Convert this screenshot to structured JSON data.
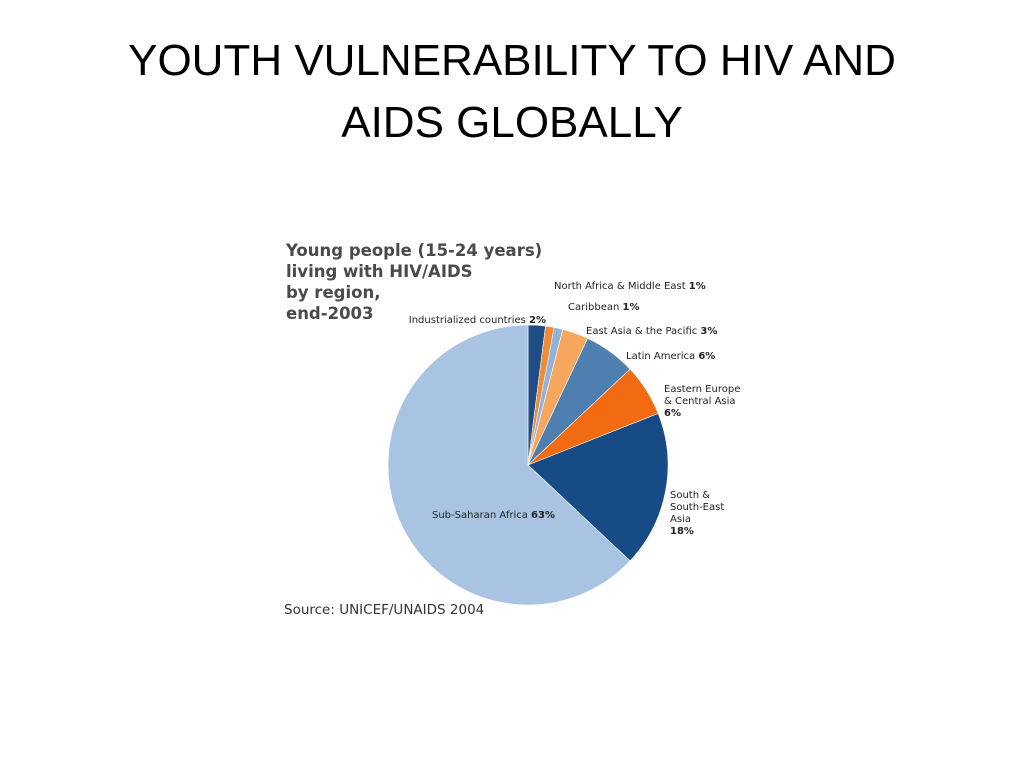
{
  "slide": {
    "title_line1": "YOUTH VULNERABILITY TO  HIV AND",
    "title_line2": "AIDS GLOBALLY"
  },
  "chart_data": {
    "type": "pie",
    "title_lines": [
      "Young people (15-24 years)",
      "living with HIV/AIDS",
      "by region,",
      "end-2003"
    ],
    "source": "Source: UNICEF/UNAIDS 2004",
    "unit": "%",
    "slices": [
      {
        "label_lines": [
          "Industrialized countries"
        ],
        "value": 2,
        "value_text": "2%",
        "color": "#1f4e85"
      },
      {
        "label_lines": [
          "North Africa & Middle East"
        ],
        "value": 1,
        "value_text": "1%",
        "color": "#f08a35"
      },
      {
        "label_lines": [
          "Caribbean"
        ],
        "value": 1,
        "value_text": "1%",
        "color": "#8fb4d8"
      },
      {
        "label_lines": [
          "East Asia & the Pacific"
        ],
        "value": 3,
        "value_text": "3%",
        "color": "#f7a65e"
      },
      {
        "label_lines": [
          "Latin America"
        ],
        "value": 6,
        "value_text": "6%",
        "color": "#4f7fae"
      },
      {
        "label_lines": [
          "Eastern Europe",
          "& Central Asia"
        ],
        "value": 6,
        "value_text": "6%",
        "color": "#f26a12"
      },
      {
        "label_lines": [
          "South &",
          "South-East",
          "Asia"
        ],
        "value": 18,
        "value_text": "18%",
        "color": "#174b86"
      },
      {
        "label_lines": [
          "Sub-Saharan Africa"
        ],
        "value": 63,
        "value_text": "63%",
        "color": "#a9c4e3"
      }
    ]
  }
}
